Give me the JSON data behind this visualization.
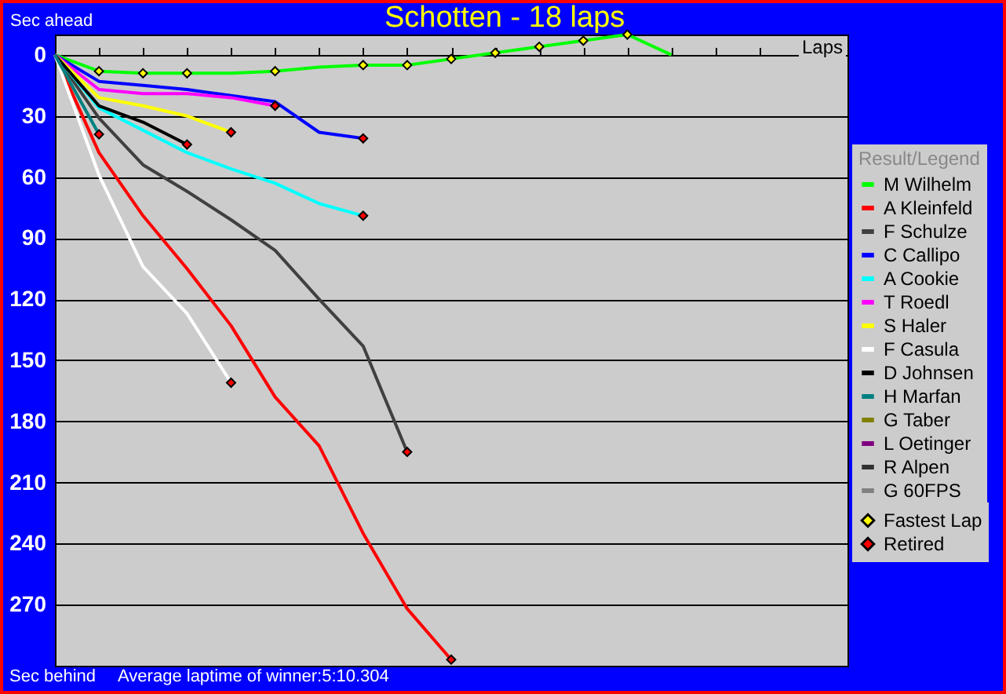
{
  "chart_data": {
    "type": "line",
    "title": "Schotten - 18 laps",
    "xlabel": "Laps",
    "ylabel": "Sec ahead",
    "legend_title": "Result/Legend",
    "annotations": [
      "Sec behind",
      "Average laptime of winner:5:10.304"
    ],
    "categories": [
      null,
      null,
      null,
      null,
      null,
      null,
      null,
      null,
      null,
      null,
      null,
      null,
      null,
      null,
      null,
      null,
      null,
      null,
      null
    ],
    "ylim": [
      300,
      -10
    ],
    "yticks": [
      0,
      30,
      60,
      90,
      120,
      150,
      180,
      210,
      240,
      270
    ],
    "grid": "y",
    "legend": "right",
    "line_style": "solid",
    "series": [
      {
        "name": "M Wilhelm",
        "color": "#00ff00",
        "values": [
          0,
          8,
          9,
          9,
          9,
          8,
          6,
          5,
          5,
          2,
          -1,
          -4,
          -7,
          -10,
          0,
          null,
          null,
          null,
          null
        ]
      },
      {
        "name": "A Kleinfeld",
        "color": "#ff0000",
        "values": [
          0,
          48,
          79,
          105,
          133,
          168,
          192,
          235,
          272,
          297,
          null,
          null,
          null,
          null,
          null,
          null,
          null,
          null,
          null
        ]
      },
      {
        "name": "F Schulze",
        "color": "#404040",
        "values": [
          0,
          31,
          54,
          67,
          81,
          96,
          120,
          143,
          195,
          null,
          null,
          null,
          null,
          null,
          null,
          null,
          null,
          null,
          null
        ]
      },
      {
        "name": "C Callipo",
        "color": "#0000ff",
        "values": [
          0,
          13,
          15,
          17,
          20,
          23,
          38,
          41,
          null,
          null,
          null,
          null,
          null,
          null,
          null,
          null,
          null,
          null,
          null
        ]
      },
      {
        "name": "A Cookie",
        "color": "#00ffff",
        "values": [
          0,
          26,
          37,
          48,
          56,
          63,
          73,
          79,
          null,
          null,
          null,
          null,
          null,
          null,
          null,
          null,
          null,
          null,
          null
        ]
      },
      {
        "name": "T Roedl",
        "color": "#ff00ff",
        "values": [
          0,
          17,
          19,
          19,
          21,
          25,
          null,
          null,
          null,
          null,
          null,
          null,
          null,
          null,
          null,
          null,
          null,
          null,
          null
        ]
      },
      {
        "name": "S Haler",
        "color": "#ffff00",
        "values": [
          0,
          21,
          25,
          30,
          38,
          null,
          null,
          null,
          null,
          null,
          null,
          null,
          null,
          null,
          null,
          null,
          null,
          null,
          null
        ]
      },
      {
        "name": "F Casula",
        "color": "#ffffff",
        "values": [
          0,
          59,
          104,
          127,
          161,
          null,
          null,
          null,
          null,
          null,
          null,
          null,
          null,
          null,
          null,
          null,
          null,
          null,
          null
        ]
      },
      {
        "name": "D Johnsen",
        "color": "#000000",
        "values": [
          0,
          25,
          33,
          44,
          null,
          null,
          null,
          null,
          null,
          null,
          null,
          null,
          null,
          null,
          null,
          null,
          null,
          null,
          null
        ]
      },
      {
        "name": "H Marfan",
        "color": "#008080",
        "values": [
          0,
          39,
          null,
          null,
          null,
          null,
          null,
          null,
          null,
          null,
          null,
          null,
          null,
          null,
          null,
          null,
          null,
          null,
          null
        ]
      },
      {
        "name": "G Taber",
        "color": "#808000",
        "values": [
          null,
          null,
          null,
          null,
          null,
          null,
          null,
          null,
          null,
          null,
          null,
          null,
          null,
          null,
          null,
          null,
          null,
          null,
          null
        ]
      },
      {
        "name": "L Oetinger",
        "color": "#800080",
        "values": [
          null,
          null,
          null,
          null,
          null,
          null,
          null,
          null,
          null,
          null,
          null,
          null,
          null,
          null,
          null,
          null,
          null,
          null,
          null
        ]
      },
      {
        "name": "R Alpen",
        "color": "#303030",
        "values": [
          null,
          null,
          null,
          null,
          null,
          null,
          null,
          null,
          null,
          null,
          null,
          null,
          null,
          null,
          null,
          null,
          null,
          null,
          null
        ]
      },
      {
        "name": "G 60FPS",
        "color": "#808080",
        "values": [
          null,
          null,
          null,
          null,
          null,
          null,
          null,
          null,
          null,
          null,
          null,
          null,
          null,
          null,
          null,
          null,
          null,
          null,
          null
        ]
      },
      {
        "name": "Fastest Lap",
        "type": "scatter",
        "marker": "diamond",
        "color": "#ffff00",
        "values": [
          null,
          8,
          9,
          9,
          null,
          8,
          null,
          5,
          5,
          2,
          -1,
          -4,
          -7,
          -10,
          null,
          null,
          null,
          null,
          null
        ]
      },
      {
        "name": "Retired",
        "type": "scatter",
        "marker": "diamond",
        "color": "#ff0000",
        "values": [
          null,
          39,
          null,
          44,
          38,
          25,
          null,
          41,
          195,
          297,
          null,
          null,
          null,
          null,
          null,
          null,
          null,
          null,
          null
        ]
      },
      {
        "type": "scatter",
        "marker": "diamond",
        "color": "#ff0000",
        "values": [
          null,
          null,
          null,
          null,
          161,
          null,
          null,
          79,
          null,
          null,
          null,
          null,
          null,
          null,
          null,
          null,
          null,
          null,
          null
        ]
      }
    ]
  }
}
